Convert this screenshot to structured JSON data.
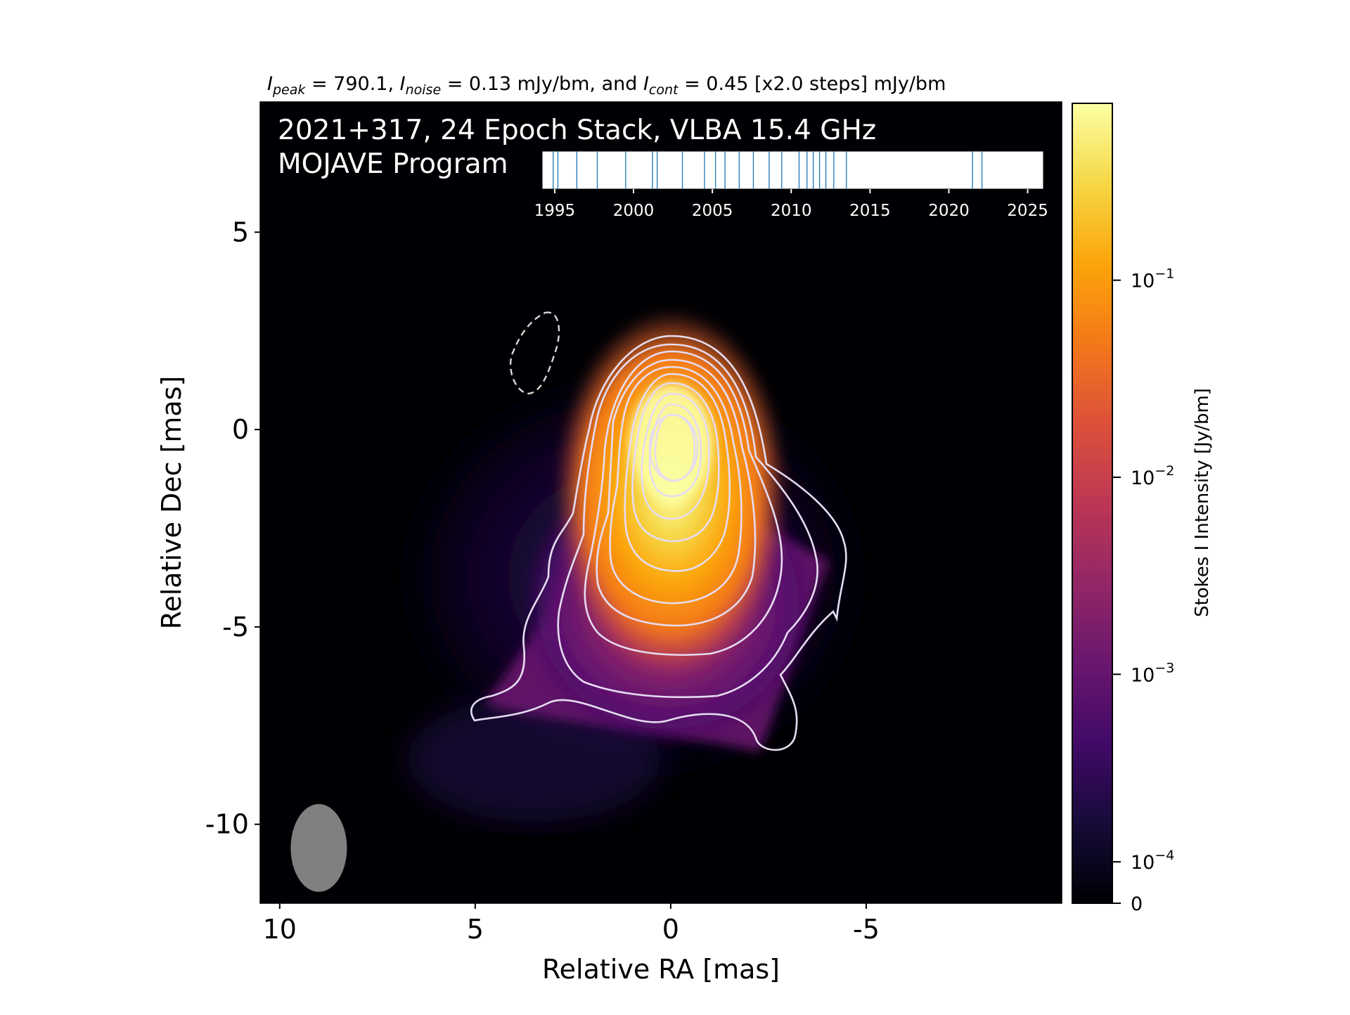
{
  "header": {
    "stats_line": {
      "ipeak_sub": "peak",
      "ipeak_value": " = 790.1, ",
      "inoise_sub": "noise",
      "inoise_value": " = 0.13 mJy/bm, and ",
      "icont_sub": "cont",
      "icont_value": " = 0.45 [x2.0 steps] mJy/bm"
    }
  },
  "image": {
    "title_line1": "2021+317, 24 Epoch Stack, VLBA 15.4 GHz",
    "title_line2": "MOJAVE Program"
  },
  "chart_data": [
    {
      "type": "heatmap",
      "subject": "2021+317 stacked 15.4 GHz VLBA Stokes I image with contours",
      "xlabel": "Relative RA [mas]",
      "ylabel": "Relative Dec [mas]",
      "xlim": [
        10.5,
        -10
      ],
      "ylim": [
        -12,
        8.3
      ],
      "x_ticks": [
        10,
        5,
        0,
        -5
      ],
      "x_tick_labels": [
        "10",
        "5",
        "0",
        "-5"
      ],
      "y_ticks": [
        5,
        0,
        -5,
        -10
      ],
      "y_tick_labels": [
        "5",
        "0",
        "-5",
        "-10"
      ],
      "colormap": "inferno",
      "peak_position": [
        0.2,
        -0.5
      ],
      "contour_levels_mJy": [
        0.45,
        0.9,
        1.8,
        3.6,
        7.2,
        14.4,
        28.8,
        57.6,
        115.2,
        230.4,
        460.8
      ],
      "negative_contour_present": true,
      "beam": {
        "center": [
          9.0,
          -10.6
        ],
        "major_mas": 1.55,
        "minor_mas": 1.25,
        "pa_deg": 0,
        "color": "#808080"
      }
    },
    {
      "type": "scatter",
      "subject": "observation epochs timeline (inset)",
      "xlim": [
        1994.2,
        2026
      ],
      "x_ticks": [
        1995,
        2000,
        2005,
        2010,
        2015,
        2020,
        2025
      ],
      "x_tick_labels": [
        "1995",
        "2000",
        "2005",
        "2010",
        "2015",
        "2020",
        "2025"
      ],
      "epochs": [
        1994.9,
        1995.2,
        1996.4,
        1997.7,
        1999.5,
        2001.2,
        2001.5,
        2003.1,
        2004.5,
        2005.2,
        2005.8,
        2006.7,
        2007.6,
        2008.6,
        2009.4,
        2010.5,
        2011.0,
        2011.4,
        2011.8,
        2012.2,
        2012.7,
        2013.5,
        2021.5,
        2022.1
      ],
      "line_color": "#1f77b4"
    },
    {
      "type": "colorbar",
      "label": "Stokes I Intensity [Jy/bm]",
      "scale": "log",
      "colormap": "inferno",
      "tick_values": [
        0.1,
        0.01,
        0.001,
        0.0001,
        0
      ],
      "tick_label_bases": [
        "10",
        "10",
        "10",
        "10",
        "0"
      ],
      "tick_label_exponents": [
        "−1",
        "−2",
        "−3",
        "−4",
        ""
      ]
    }
  ]
}
